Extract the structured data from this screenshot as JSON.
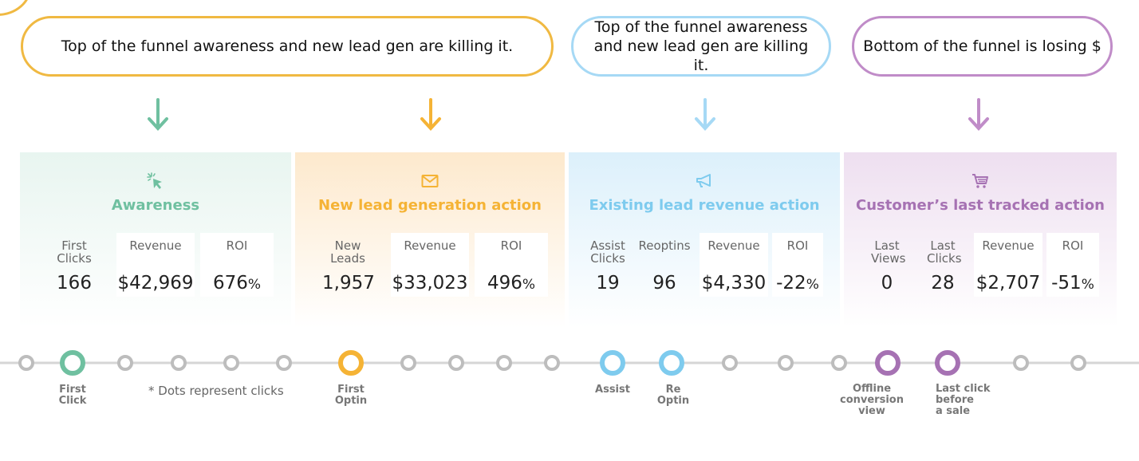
{
  "callouts": [
    {
      "text": "Top of the funnel awareness and new lead gen are killing it.",
      "color": "#f0b942"
    },
    {
      "text": "Top of the funnel awareness and new lead gen are killing it.",
      "color": "#a6d9f5"
    },
    {
      "text": "Bottom of the funnel is losing $",
      "color": "#c08cc8"
    }
  ],
  "colors": {
    "awareness": "#6fc0a0",
    "new_lead": "#f5b335",
    "existing": "#7ecbee",
    "customer": "#a672b3",
    "dot_gray": "#bdbdbd"
  },
  "panels": [
    {
      "title": "Awareness",
      "icon": "cursor-click-icon",
      "metrics": [
        {
          "label": "First Clicks",
          "value": "166"
        },
        {
          "label": "Revenue",
          "value": "$42,969"
        },
        {
          "label": "ROI",
          "value": "676",
          "unit": "%"
        }
      ]
    },
    {
      "title": "New lead generation action",
      "icon": "envelope-icon",
      "metrics": [
        {
          "label": "New Leads",
          "value": "1,957"
        },
        {
          "label": "Revenue",
          "value": "$33,023"
        },
        {
          "label": "ROI",
          "value": "496",
          "unit": "%"
        }
      ]
    },
    {
      "title": "Existing lead revenue action",
      "icon": "megaphone-icon",
      "metrics": [
        {
          "label": "Assist Clicks",
          "value": "19"
        },
        {
          "label": "Reoptins",
          "value": "96"
        },
        {
          "label": "Revenue",
          "value": "$4,330"
        },
        {
          "label": "ROI",
          "value": "-22",
          "unit": "%"
        }
      ]
    },
    {
      "title": "Customer’s last tracked action",
      "icon": "shopping-cart-icon",
      "metrics": [
        {
          "label": "Last Views",
          "value": "0"
        },
        {
          "label": "Last Clicks",
          "value": "28"
        },
        {
          "label": "Revenue",
          "value": "$2,707"
        },
        {
          "label": "ROI",
          "value": "-51",
          "unit": "%"
        }
      ]
    }
  ],
  "timeline": {
    "note": "* Dots represent clicks",
    "labels": {
      "first_click": "First\nClick",
      "first_optin": "First\nOptin",
      "assist": "Assist",
      "re_optin": "Re\nOptin",
      "offline": "Offline\nconversion\nview",
      "last_click": "Last click\nbefore\na sale"
    }
  }
}
